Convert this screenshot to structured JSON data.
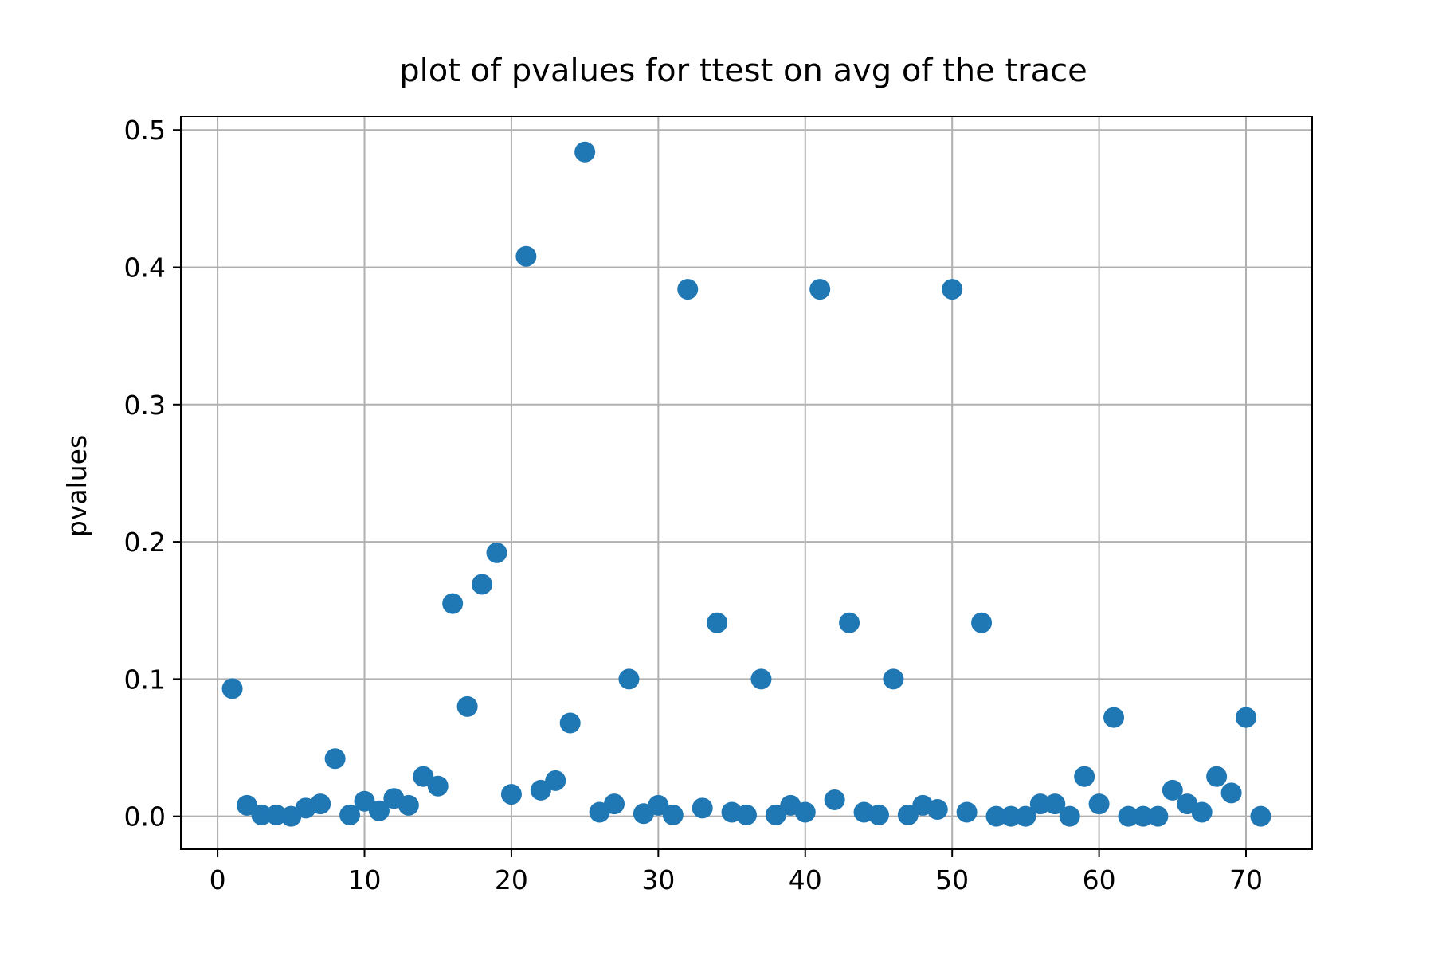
{
  "chart_data": {
    "type": "scatter",
    "title": "plot of pvalues for ttest on avg of the trace",
    "xlabel": "",
    "ylabel": "pvalues",
    "xlim": [
      -2.5,
      74.5
    ],
    "ylim": [
      -0.024,
      0.51
    ],
    "grid": true,
    "color": "#1f77b4",
    "x_ticks": [
      0,
      10,
      20,
      30,
      40,
      50,
      60,
      70
    ],
    "x_tick_labels": [
      "0",
      "10",
      "20",
      "30",
      "40",
      "50",
      "60",
      "70"
    ],
    "y_ticks": [
      0.0,
      0.1,
      0.2,
      0.3,
      0.4,
      0.5
    ],
    "y_tick_labels": [
      "0.0",
      "0.1",
      "0.2",
      "0.3",
      "0.4",
      "0.5"
    ],
    "series": [
      {
        "x": [
          1,
          2,
          3,
          4,
          5,
          6,
          7,
          8,
          9,
          10,
          11,
          12,
          13,
          14,
          15,
          16,
          17,
          18,
          19,
          20,
          21,
          22,
          23,
          24,
          25,
          26,
          27,
          28,
          29,
          30,
          31,
          32,
          33,
          34,
          35,
          36,
          37,
          38,
          39,
          40,
          41,
          42,
          43,
          44,
          45,
          46,
          47,
          48,
          49,
          50,
          51,
          52,
          53,
          54,
          55,
          56,
          57,
          58,
          59,
          60,
          61,
          62,
          63,
          64,
          65,
          66,
          67,
          68,
          69,
          70,
          71
        ],
        "y": [
          0.093,
          0.008,
          0.001,
          0.001,
          0.0,
          0.006,
          0.009,
          0.042,
          0.001,
          0.011,
          0.004,
          0.013,
          0.008,
          0.029,
          0.022,
          0.155,
          0.08,
          0.169,
          0.192,
          0.016,
          0.408,
          0.019,
          0.026,
          0.068,
          0.484,
          0.003,
          0.009,
          0.1,
          0.002,
          0.008,
          0.001,
          0.384,
          0.006,
          0.141,
          0.003,
          0.001,
          0.1,
          0.001,
          0.008,
          0.003,
          0.384,
          0.012,
          0.141,
          0.003,
          0.001,
          0.1,
          0.001,
          0.008,
          0.005,
          0.384,
          0.003,
          0.141,
          0.0,
          0.0,
          0.0,
          0.009,
          0.009,
          0.0,
          0.029,
          0.009,
          0.072,
          0.0,
          0.0,
          0.0,
          0.019,
          0.009,
          0.003,
          0.029,
          0.017,
          0.072,
          0.0
        ]
      }
    ]
  }
}
